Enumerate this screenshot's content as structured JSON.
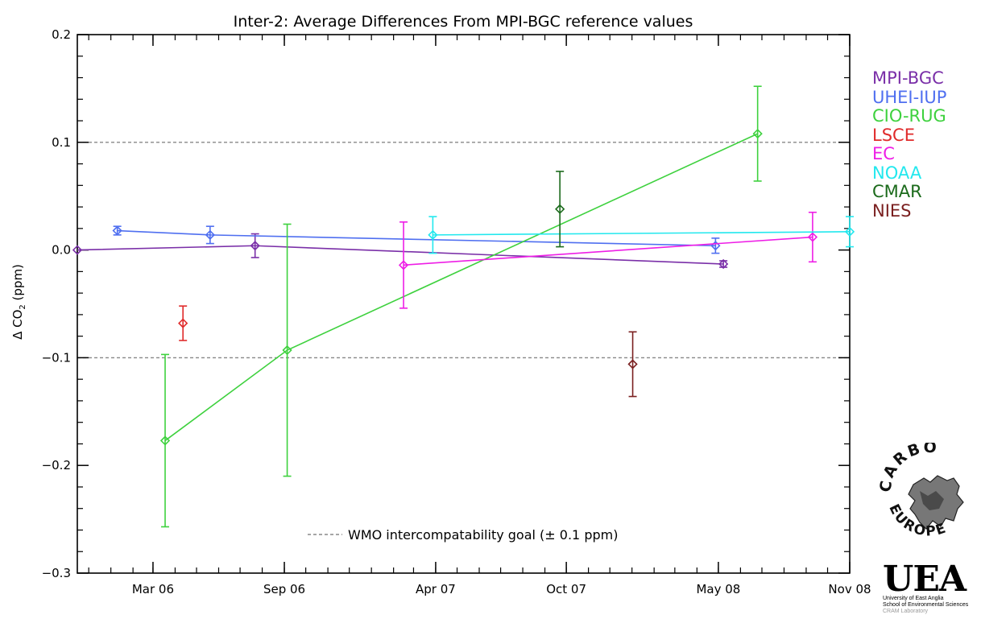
{
  "chart_data": {
    "type": "scatter",
    "title": "Inter-2: Average Differences From MPI-BGC reference values",
    "ylabel_prefix": "Δ CO",
    "ylabel_sub": "2",
    "ylabel_suffix": " (ppm)",
    "ylim": [
      -0.3,
      0.2
    ],
    "xlim": [
      "2005-11-15",
      "2008-11-01"
    ],
    "y_ticks": [
      -0.3,
      -0.2,
      -0.1,
      0.0,
      0.1,
      0.2
    ],
    "y_tick_labels": [
      "−0.3",
      "−0.2",
      "−0.1",
      "0.0",
      "0.1",
      "0.2"
    ],
    "x_ticks": [
      "2006-03-01",
      "2006-09-01",
      "2007-04-01",
      "2007-10-01",
      "2008-05-01",
      "2008-11-01"
    ],
    "x_tick_labels": [
      "Mar 06",
      "Sep 06",
      "Apr 07",
      "Oct 07",
      "May 08",
      "Nov 08"
    ],
    "reference_lines": [
      0.1,
      -0.1
    ],
    "reference_line_label": "WMO intercompatability goal (± 0.1 ppm)",
    "legend_position": "right",
    "series": [
      {
        "name": "MPI-BGC",
        "color": "#7a2fa8",
        "connected": true,
        "points": [
          {
            "x": "2005-11-15",
            "y": 0.0,
            "err": 0.0
          },
          {
            "x": "2006-07-22",
            "y": 0.004,
            "err": 0.011
          },
          {
            "x": "2008-05-08",
            "y": -0.013,
            "err": 0.003
          }
        ]
      },
      {
        "name": "UHEI-IUP",
        "color": "#4f6ff0",
        "connected": true,
        "points": [
          {
            "x": "2006-01-10",
            "y": 0.018,
            "err": 0.004
          },
          {
            "x": "2006-05-20",
            "y": 0.014,
            "err": 0.008
          },
          {
            "x": "2008-04-27",
            "y": 0.004,
            "err": 0.007
          }
        ]
      },
      {
        "name": "CIO-RUG",
        "color": "#3ed13e",
        "connected": true,
        "points": [
          {
            "x": "2006-03-18",
            "y": -0.177,
            "err": 0.08
          },
          {
            "x": "2006-09-05",
            "y": -0.093,
            "err": 0.117
          },
          {
            "x": "2008-06-25",
            "y": 0.108,
            "err": 0.044
          }
        ]
      },
      {
        "name": "LSCE",
        "color": "#e02b2b",
        "connected": false,
        "points": [
          {
            "x": "2006-04-12",
            "y": -0.068,
            "err": 0.016
          }
        ]
      },
      {
        "name": "EC",
        "color": "#ee1ee6",
        "connected": true,
        "points": [
          {
            "x": "2007-02-15",
            "y": -0.014,
            "err": 0.04
          },
          {
            "x": "2008-09-10",
            "y": 0.012,
            "err": 0.023
          }
        ]
      },
      {
        "name": "NOAA",
        "color": "#22e8ee",
        "connected": true,
        "points": [
          {
            "x": "2007-03-28",
            "y": 0.014,
            "err": 0.017
          },
          {
            "x": "2008-11-01",
            "y": 0.017,
            "err": 0.014
          }
        ]
      },
      {
        "name": "CMAR",
        "color": "#1b6a1b",
        "connected": false,
        "points": [
          {
            "x": "2007-09-22",
            "y": 0.038,
            "err": 0.035
          }
        ]
      },
      {
        "name": "NIES",
        "color": "#7a1f1f",
        "connected": false,
        "points": [
          {
            "x": "2008-01-02",
            "y": -0.106,
            "err": 0.03
          }
        ]
      }
    ]
  },
  "logos": {
    "carbo_top": "CARBO",
    "carbo_bottom": "EUROPE",
    "uea_mark": "UEA",
    "uea_line1": "University of East Anglia",
    "uea_line2": "School of Environmental Sciences",
    "uea_line3": "CRAM Laboratory"
  }
}
